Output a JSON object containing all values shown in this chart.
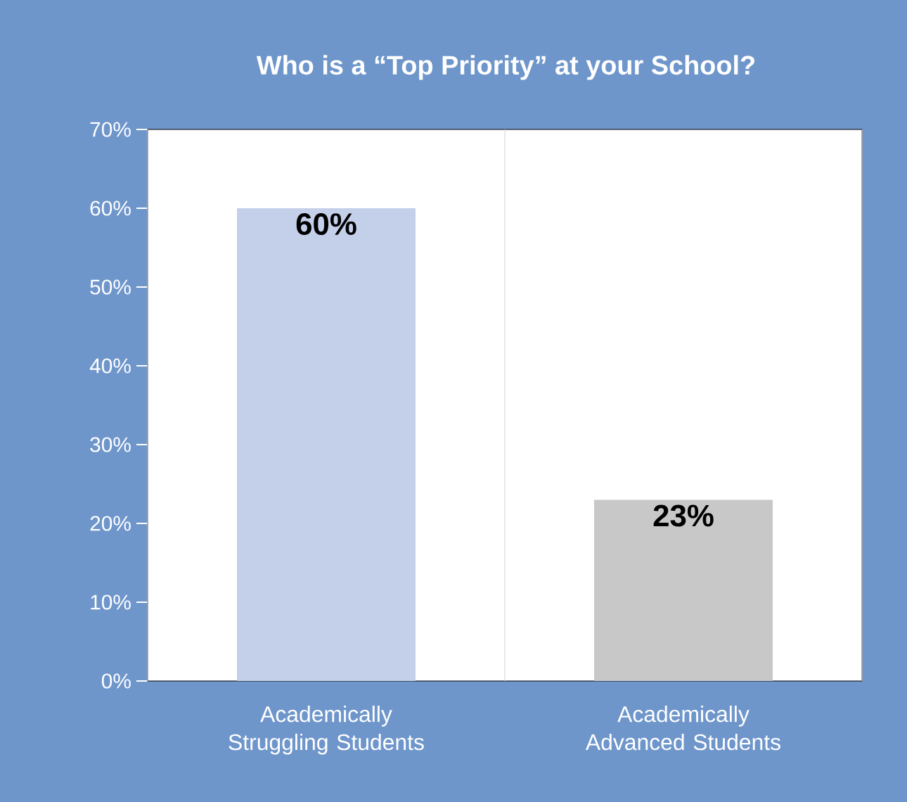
{
  "chart_data": {
    "type": "bar",
    "title": "Who is a “Top Priority” at your School?",
    "categories": [
      "Academically Struggling Students",
      "Academically Advanced Students"
    ],
    "values": [
      60,
      23
    ],
    "colors": [
      "#c4d0ea",
      "#c8c8c8"
    ],
    "value_labels": [
      "60%",
      "23%"
    ],
    "ylim": [
      0,
      70
    ],
    "yticks": [
      {
        "value": 0,
        "label": "0%"
      },
      {
        "value": 10,
        "label": "10%"
      },
      {
        "value": 20,
        "label": "20%"
      },
      {
        "value": 30,
        "label": "30%"
      },
      {
        "value": 40,
        "label": "40%"
      },
      {
        "value": 50,
        "label": "50%"
      },
      {
        "value": 60,
        "label": "60%"
      },
      {
        "value": 70,
        "label": "70%"
      }
    ],
    "grid": "x"
  }
}
